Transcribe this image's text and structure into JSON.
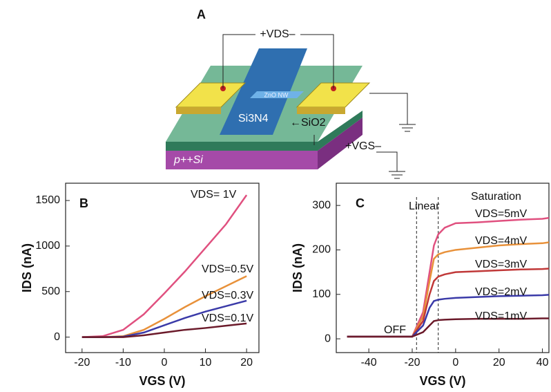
{
  "schematic": {
    "panel": "A",
    "vds": "+VDS–",
    "nanowire": "ZnO NW",
    "nitride": "Si3N4",
    "oxide": "←SiO2",
    "vgs": "+VGS–",
    "substrate": "p++Si"
  },
  "chart_data": [
    {
      "type": "line",
      "panel": "B",
      "x_label": "VGS (V)",
      "y_label": "IDS (nA)",
      "xlim": [
        -24,
        23
      ],
      "ylim": [
        -170,
        1690
      ],
      "xticks": [
        -20,
        -10,
        0,
        10,
        20
      ],
      "yticks": [
        0,
        500,
        1000,
        1500
      ],
      "x": [
        -20,
        -15,
        -10,
        -5,
        0,
        5,
        10,
        15,
        20
      ],
      "series": [
        {
          "name": "VDS= 1V",
          "color": "#e0507f",
          "values": [
            0,
            10,
            80,
            250,
            480,
            720,
            980,
            1240,
            1560
          ]
        },
        {
          "name": "VDS=0.5V",
          "color": "#e8913a",
          "values": [
            0,
            0,
            10,
            80,
            200,
            330,
            450,
            560,
            670
          ]
        },
        {
          "name": "VDS=0.3V",
          "color": "#3a3aa8",
          "values": [
            0,
            0,
            5,
            50,
            130,
            210,
            280,
            340,
            400
          ]
        },
        {
          "name": "VDS=0.1V",
          "color": "#6b1a2a",
          "values": [
            0,
            0,
            0,
            20,
            50,
            80,
            100,
            125,
            150
          ]
        }
      ]
    },
    {
      "type": "line",
      "panel": "C",
      "x_label": "VGS (V)",
      "y_label": "IDS (nA)",
      "xlim": [
        -55,
        43
      ],
      "ylim": [
        -31,
        350
      ],
      "xticks": [
        -40,
        -20,
        0,
        20,
        40
      ],
      "yticks": [
        0,
        100,
        200,
        300
      ],
      "annotations": [
        "Linear",
        "Saturation",
        "OFF"
      ],
      "vlines": [
        -18,
        -8
      ],
      "x": [
        -50,
        -30,
        -20,
        -15,
        -12,
        -10,
        -8,
        -5,
        0,
        10,
        20,
        30,
        40,
        43
      ],
      "series": [
        {
          "name": "VDS=5mV",
          "color": "#e0507f",
          "values": [
            5,
            5,
            5,
            60,
            150,
            210,
            235,
            250,
            260,
            262,
            265,
            268,
            270,
            272
          ]
        },
        {
          "name": "VDS=4mV",
          "color": "#e8913a",
          "values": [
            5,
            5,
            5,
            50,
            130,
            180,
            190,
            195,
            200,
            205,
            210,
            213,
            215,
            217
          ]
        },
        {
          "name": "VDS=3mV",
          "color": "#c03838",
          "values": [
            5,
            5,
            5,
            40,
            100,
            130,
            140,
            145,
            150,
            152,
            154,
            156,
            157,
            158
          ]
        },
        {
          "name": "VDS=2mV",
          "color": "#3a3aa8",
          "values": [
            5,
            5,
            5,
            30,
            70,
            85,
            88,
            90,
            92,
            94,
            96,
            97,
            98,
            99
          ]
        },
        {
          "name": "VDS=1mV",
          "color": "#6b1a2a",
          "values": [
            5,
            5,
            5,
            15,
            30,
            40,
            42,
            43,
            44,
            45,
            45,
            45,
            46,
            46
          ]
        }
      ]
    }
  ]
}
